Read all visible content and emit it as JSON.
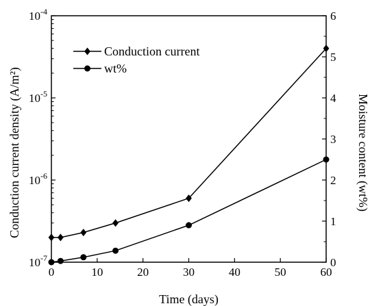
{
  "chart_data": {
    "type": "line",
    "xlabel": "Time (days)",
    "ylabel_left": "Conduction current density (A/m²)",
    "ylabel_right": "Moisture content (wt%)",
    "xlim": [
      0,
      60
    ],
    "xticks": [
      0,
      10,
      20,
      30,
      40,
      50,
      60
    ],
    "ylim_left": [
      1e-07,
      0.0001
    ],
    "yscale_left": "log",
    "yticks_left": [
      {
        "base": "10",
        "exp": "-7",
        "value": 1e-07
      },
      {
        "base": "10",
        "exp": "-6",
        "value": 1e-06
      },
      {
        "base": "10",
        "exp": "-5",
        "value": 1e-05
      },
      {
        "base": "10",
        "exp": "-4",
        "value": 0.0001
      }
    ],
    "ylim_right": [
      0,
      6
    ],
    "yticks_right": [
      0,
      1,
      2,
      3,
      4,
      5,
      6
    ],
    "grid": false,
    "legend_position": "top-left",
    "series": [
      {
        "name": "Conduction current",
        "marker": "diamond",
        "axis": "left",
        "x": [
          0,
          2,
          7,
          14,
          30,
          60
        ],
        "y": [
          2e-07,
          2e-07,
          2.3e-07,
          3e-07,
          6e-07,
          4e-05
        ]
      },
      {
        "name": "wt%",
        "marker": "circle",
        "axis": "right",
        "x": [
          0,
          2,
          7,
          14,
          30,
          60
        ],
        "y": [
          0.0,
          0.03,
          0.12,
          0.28,
          0.9,
          2.5
        ]
      }
    ]
  }
}
